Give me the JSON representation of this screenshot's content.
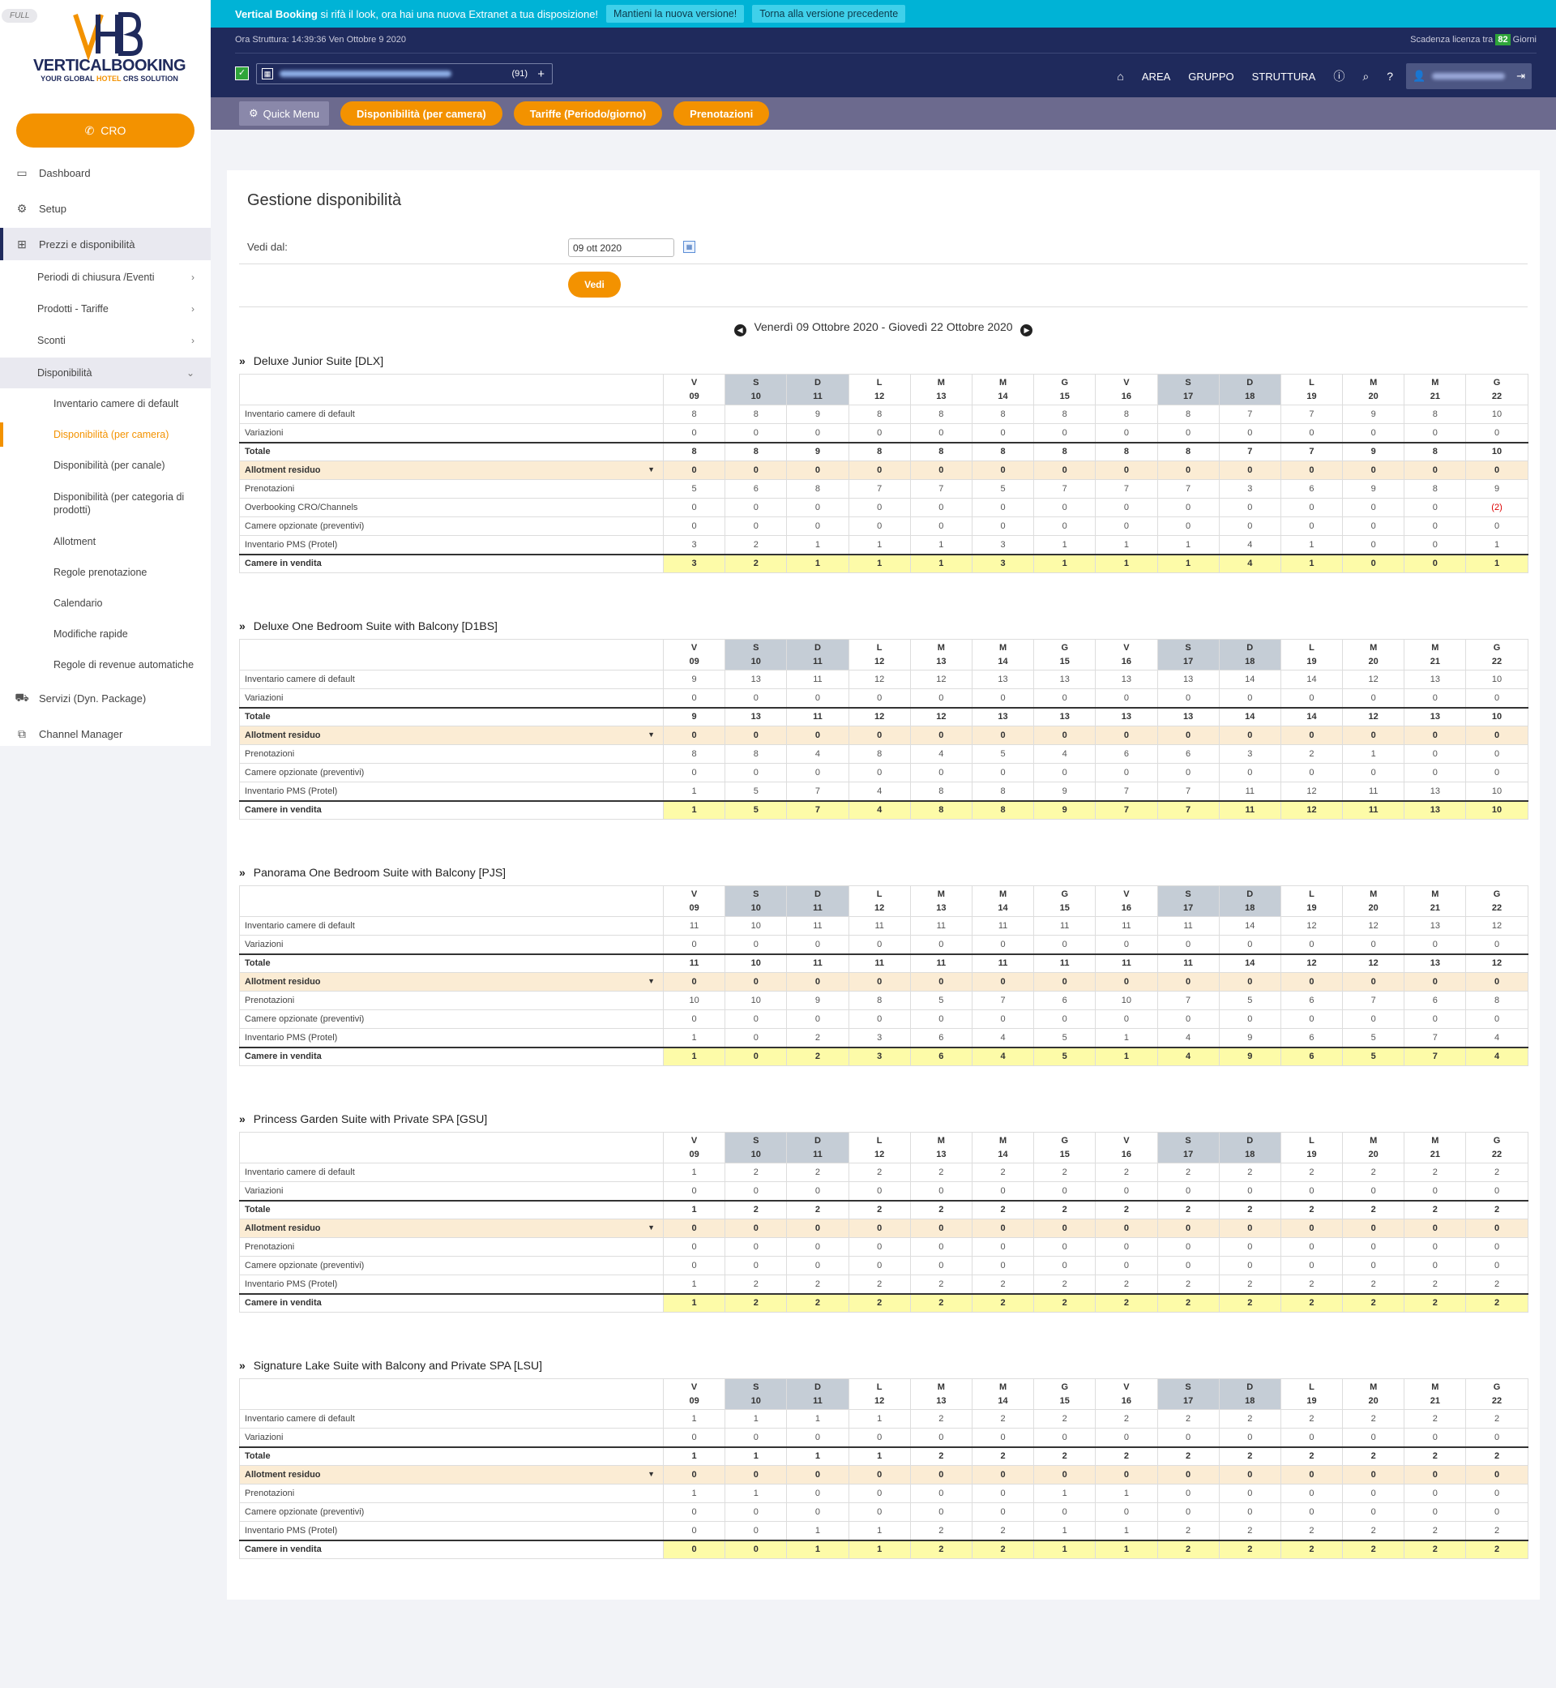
{
  "sidebar": {
    "badge": "FULL",
    "logo": {
      "mark": "VHB",
      "brand": "VERTICALBOOKING",
      "tag_pre": "YOUR GLOBAL ",
      "tag_hl": "HOTEL",
      "tag_post": " CRS SOLUTION"
    },
    "cro_label": "CRO",
    "items": [
      {
        "label": "Dashboard",
        "icon": "monitor-icon"
      },
      {
        "label": "Setup",
        "icon": "gears-icon"
      },
      {
        "label": "Prezzi e disponibilità",
        "icon": "table-icon"
      },
      {
        "label": "Servizi (Dyn. Package)",
        "icon": "car-icon"
      },
      {
        "label": "Channel Manager",
        "icon": "sitemap-icon"
      }
    ],
    "subitems": [
      "Periodi di chiusura /Eventi",
      "Prodotti - Tariffe",
      "Sconti",
      "Disponibilità"
    ],
    "subsubitems": [
      "Inventario camere di default",
      "Disponibilità (per camera)",
      "Disponibilità (per canale)",
      "Disponibilità (per categoria di prodotti)",
      "Allotment",
      "Regole prenotazione",
      "Calendario",
      "Modifiche rapide",
      "Regole di revenue automatiche"
    ]
  },
  "banner": {
    "brand": "Vertical Booking",
    "message": "si rifà il look, ora hai una nuova Extranet a tua disposizione!",
    "keep_btn": "Mantieni la nuova versione!",
    "back_btn": "Torna alla versione precedente"
  },
  "header": {
    "time": "Ora Struttura: 14:39:36 Ven Ottobre 9 2020",
    "license_pre": "Scadenza licenza tra",
    "license_days": "82",
    "license_post": "Giorni",
    "property_count": "(91)",
    "nav": [
      "AREA",
      "GRUPPO",
      "STRUTTURA"
    ]
  },
  "quickbar": {
    "quick_menu": "Quick Menu",
    "buttons": [
      "Disponibilità (per camera)",
      "Tariffe (Periodo/giorno)",
      "Prenotazioni"
    ]
  },
  "page": {
    "title": "Gestione disponibilità",
    "vedi_dal_label": "Vedi dal:",
    "date_value": "09 ott 2020",
    "vedi_btn": "Vedi",
    "period": "Venerdì 09 Ottobre 2020 - Giovedì 22 Ottobre 2020"
  },
  "days": [
    {
      "d": "V",
      "n": "09"
    },
    {
      "d": "S",
      "n": "10"
    },
    {
      "d": "D",
      "n": "11"
    },
    {
      "d": "L",
      "n": "12"
    },
    {
      "d": "M",
      "n": "13"
    },
    {
      "d": "M",
      "n": "14"
    },
    {
      "d": "G",
      "n": "15"
    },
    {
      "d": "V",
      "n": "16"
    },
    {
      "d": "S",
      "n": "17"
    },
    {
      "d": "D",
      "n": "18"
    },
    {
      "d": "L",
      "n": "19"
    },
    {
      "d": "M",
      "n": "20"
    },
    {
      "d": "M",
      "n": "21"
    },
    {
      "d": "G",
      "n": "22"
    }
  ],
  "rooms": [
    {
      "title": "Deluxe Junior Suite [DLX]",
      "rows": [
        {
          "label": "Inventario camere di default",
          "values": [
            "8",
            "8",
            "9",
            "8",
            "8",
            "8",
            "8",
            "8",
            "8",
            "7",
            "7",
            "9",
            "8",
            "10"
          ]
        },
        {
          "label": "Variazioni",
          "values": [
            "0",
            "0",
            "0",
            "0",
            "0",
            "0",
            "0",
            "0",
            "0",
            "0",
            "0",
            "0",
            "0",
            "0"
          ]
        },
        {
          "label": "Totale",
          "style": "total",
          "values": [
            "8",
            "8",
            "9",
            "8",
            "8",
            "8",
            "8",
            "8",
            "8",
            "7",
            "7",
            "9",
            "8",
            "10"
          ]
        },
        {
          "label": "Allotment residuo",
          "style": "allot",
          "values": [
            "0",
            "0",
            "0",
            "0",
            "0",
            "0",
            "0",
            "0",
            "0",
            "0",
            "0",
            "0",
            "0",
            "0"
          ]
        },
        {
          "label": "Prenotazioni",
          "values": [
            "5",
            "6",
            "8",
            "7",
            "7",
            "5",
            "7",
            "7",
            "7",
            "3",
            "6",
            "9",
            "8",
            "9"
          ]
        },
        {
          "label": "Overbooking CRO/Channels",
          "values": [
            "0",
            "0",
            "0",
            "0",
            "0",
            "0",
            "0",
            "0",
            "0",
            "0",
            "0",
            "0",
            "0",
            "(2)"
          ],
          "red": [
            13
          ]
        },
        {
          "label": "Camere opzionate (preventivi)",
          "values": [
            "0",
            "0",
            "0",
            "0",
            "0",
            "0",
            "0",
            "0",
            "0",
            "0",
            "0",
            "0",
            "0",
            "0"
          ]
        },
        {
          "label": "Inventario PMS (Protel)",
          "values": [
            "3",
            "2",
            "1",
            "1",
            "1",
            "3",
            "1",
            "1",
            "1",
            "4",
            "1",
            "0",
            "0",
            "1"
          ]
        },
        {
          "label": "Camere in vendita",
          "style": "vend",
          "values": [
            "3",
            "2",
            "1",
            "1",
            "1",
            "3",
            "1",
            "1",
            "1",
            "4",
            "1",
            "0",
            "0",
            "1"
          ],
          "red": [
            11,
            12
          ]
        }
      ]
    },
    {
      "title": "Deluxe One Bedroom Suite with Balcony [D1BS]",
      "rows": [
        {
          "label": "Inventario camere di default",
          "values": [
            "9",
            "13",
            "11",
            "12",
            "12",
            "13",
            "13",
            "13",
            "13",
            "14",
            "14",
            "12",
            "13",
            "10"
          ]
        },
        {
          "label": "Variazioni",
          "values": [
            "0",
            "0",
            "0",
            "0",
            "0",
            "0",
            "0",
            "0",
            "0",
            "0",
            "0",
            "0",
            "0",
            "0"
          ]
        },
        {
          "label": "Totale",
          "style": "total",
          "values": [
            "9",
            "13",
            "11",
            "12",
            "12",
            "13",
            "13",
            "13",
            "13",
            "14",
            "14",
            "12",
            "13",
            "10"
          ]
        },
        {
          "label": "Allotment residuo",
          "style": "allot",
          "values": [
            "0",
            "0",
            "0",
            "0",
            "0",
            "0",
            "0",
            "0",
            "0",
            "0",
            "0",
            "0",
            "0",
            "0"
          ]
        },
        {
          "label": "Prenotazioni",
          "values": [
            "8",
            "8",
            "4",
            "8",
            "4",
            "5",
            "4",
            "6",
            "6",
            "3",
            "2",
            "1",
            "0",
            "0"
          ]
        },
        {
          "label": "Camere opzionate (preventivi)",
          "values": [
            "0",
            "0",
            "0",
            "0",
            "0",
            "0",
            "0",
            "0",
            "0",
            "0",
            "0",
            "0",
            "0",
            "0"
          ]
        },
        {
          "label": "Inventario PMS (Protel)",
          "values": [
            "1",
            "5",
            "7",
            "4",
            "8",
            "8",
            "9",
            "7",
            "7",
            "11",
            "12",
            "11",
            "13",
            "10"
          ]
        },
        {
          "label": "Camere in vendita",
          "style": "vend",
          "values": [
            "1",
            "5",
            "7",
            "4",
            "8",
            "8",
            "9",
            "7",
            "7",
            "11",
            "12",
            "11",
            "13",
            "10"
          ]
        }
      ]
    },
    {
      "title": "Panorama One Bedroom Suite with Balcony [PJS]",
      "rows": [
        {
          "label": "Inventario camere di default",
          "values": [
            "11",
            "10",
            "11",
            "11",
            "11",
            "11",
            "11",
            "11",
            "11",
            "14",
            "12",
            "12",
            "13",
            "12"
          ]
        },
        {
          "label": "Variazioni",
          "values": [
            "0",
            "0",
            "0",
            "0",
            "0",
            "0",
            "0",
            "0",
            "0",
            "0",
            "0",
            "0",
            "0",
            "0"
          ]
        },
        {
          "label": "Totale",
          "style": "total",
          "values": [
            "11",
            "10",
            "11",
            "11",
            "11",
            "11",
            "11",
            "11",
            "11",
            "14",
            "12",
            "12",
            "13",
            "12"
          ]
        },
        {
          "label": "Allotment residuo",
          "style": "allot",
          "values": [
            "0",
            "0",
            "0",
            "0",
            "0",
            "0",
            "0",
            "0",
            "0",
            "0",
            "0",
            "0",
            "0",
            "0"
          ]
        },
        {
          "label": "Prenotazioni",
          "values": [
            "10",
            "10",
            "9",
            "8",
            "5",
            "7",
            "6",
            "10",
            "7",
            "5",
            "6",
            "7",
            "6",
            "8"
          ]
        },
        {
          "label": "Camere opzionate (preventivi)",
          "values": [
            "0",
            "0",
            "0",
            "0",
            "0",
            "0",
            "0",
            "0",
            "0",
            "0",
            "0",
            "0",
            "0",
            "0"
          ]
        },
        {
          "label": "Inventario PMS (Protel)",
          "values": [
            "1",
            "0",
            "2",
            "3",
            "6",
            "4",
            "5",
            "1",
            "4",
            "9",
            "6",
            "5",
            "7",
            "4"
          ]
        },
        {
          "label": "Camere in vendita",
          "style": "vend",
          "values": [
            "1",
            "0",
            "2",
            "3",
            "6",
            "4",
            "5",
            "1",
            "4",
            "9",
            "6",
            "5",
            "7",
            "4"
          ],
          "red": [
            1
          ]
        }
      ]
    },
    {
      "title": "Princess Garden Suite with Private SPA [GSU]",
      "rows": [
        {
          "label": "Inventario camere di default",
          "values": [
            "1",
            "2",
            "2",
            "2",
            "2",
            "2",
            "2",
            "2",
            "2",
            "2",
            "2",
            "2",
            "2",
            "2"
          ]
        },
        {
          "label": "Variazioni",
          "values": [
            "0",
            "0",
            "0",
            "0",
            "0",
            "0",
            "0",
            "0",
            "0",
            "0",
            "0",
            "0",
            "0",
            "0"
          ]
        },
        {
          "label": "Totale",
          "style": "total",
          "values": [
            "1",
            "2",
            "2",
            "2",
            "2",
            "2",
            "2",
            "2",
            "2",
            "2",
            "2",
            "2",
            "2",
            "2"
          ]
        },
        {
          "label": "Allotment residuo",
          "style": "allot",
          "values": [
            "0",
            "0",
            "0",
            "0",
            "0",
            "0",
            "0",
            "0",
            "0",
            "0",
            "0",
            "0",
            "0",
            "0"
          ]
        },
        {
          "label": "Prenotazioni",
          "values": [
            "0",
            "0",
            "0",
            "0",
            "0",
            "0",
            "0",
            "0",
            "0",
            "0",
            "0",
            "0",
            "0",
            "0"
          ]
        },
        {
          "label": "Camere opzionate (preventivi)",
          "values": [
            "0",
            "0",
            "0",
            "0",
            "0",
            "0",
            "0",
            "0",
            "0",
            "0",
            "0",
            "0",
            "0",
            "0"
          ]
        },
        {
          "label": "Inventario PMS (Protel)",
          "values": [
            "1",
            "2",
            "2",
            "2",
            "2",
            "2",
            "2",
            "2",
            "2",
            "2",
            "2",
            "2",
            "2",
            "2"
          ]
        },
        {
          "label": "Camere in vendita",
          "style": "vend",
          "values": [
            "1",
            "2",
            "2",
            "2",
            "2",
            "2",
            "2",
            "2",
            "2",
            "2",
            "2",
            "2",
            "2",
            "2"
          ]
        }
      ]
    },
    {
      "title": "Signature Lake Suite with Balcony and Private SPA [LSU]",
      "rows": [
        {
          "label": "Inventario camere di default",
          "values": [
            "1",
            "1",
            "1",
            "1",
            "2",
            "2",
            "2",
            "2",
            "2",
            "2",
            "2",
            "2",
            "2",
            "2"
          ]
        },
        {
          "label": "Variazioni",
          "values": [
            "0",
            "0",
            "0",
            "0",
            "0",
            "0",
            "0",
            "0",
            "0",
            "0",
            "0",
            "0",
            "0",
            "0"
          ]
        },
        {
          "label": "Totale",
          "style": "total",
          "values": [
            "1",
            "1",
            "1",
            "1",
            "2",
            "2",
            "2",
            "2",
            "2",
            "2",
            "2",
            "2",
            "2",
            "2"
          ]
        },
        {
          "label": "Allotment residuo",
          "style": "allot",
          "values": [
            "0",
            "0",
            "0",
            "0",
            "0",
            "0",
            "0",
            "0",
            "0",
            "0",
            "0",
            "0",
            "0",
            "0"
          ]
        },
        {
          "label": "Prenotazioni",
          "values": [
            "1",
            "1",
            "0",
            "0",
            "0",
            "0",
            "1",
            "1",
            "0",
            "0",
            "0",
            "0",
            "0",
            "0"
          ]
        },
        {
          "label": "Camere opzionate (preventivi)",
          "values": [
            "0",
            "0",
            "0",
            "0",
            "0",
            "0",
            "0",
            "0",
            "0",
            "0",
            "0",
            "0",
            "0",
            "0"
          ]
        },
        {
          "label": "Inventario PMS (Protel)",
          "values": [
            "0",
            "0",
            "1",
            "1",
            "2",
            "2",
            "1",
            "1",
            "2",
            "2",
            "2",
            "2",
            "2",
            "2"
          ]
        },
        {
          "label": "Camere in vendita",
          "style": "vend",
          "values": [
            "0",
            "0",
            "1",
            "1",
            "2",
            "2",
            "1",
            "1",
            "2",
            "2",
            "2",
            "2",
            "2",
            "2"
          ],
          "red": [
            0,
            1
          ]
        }
      ]
    }
  ]
}
